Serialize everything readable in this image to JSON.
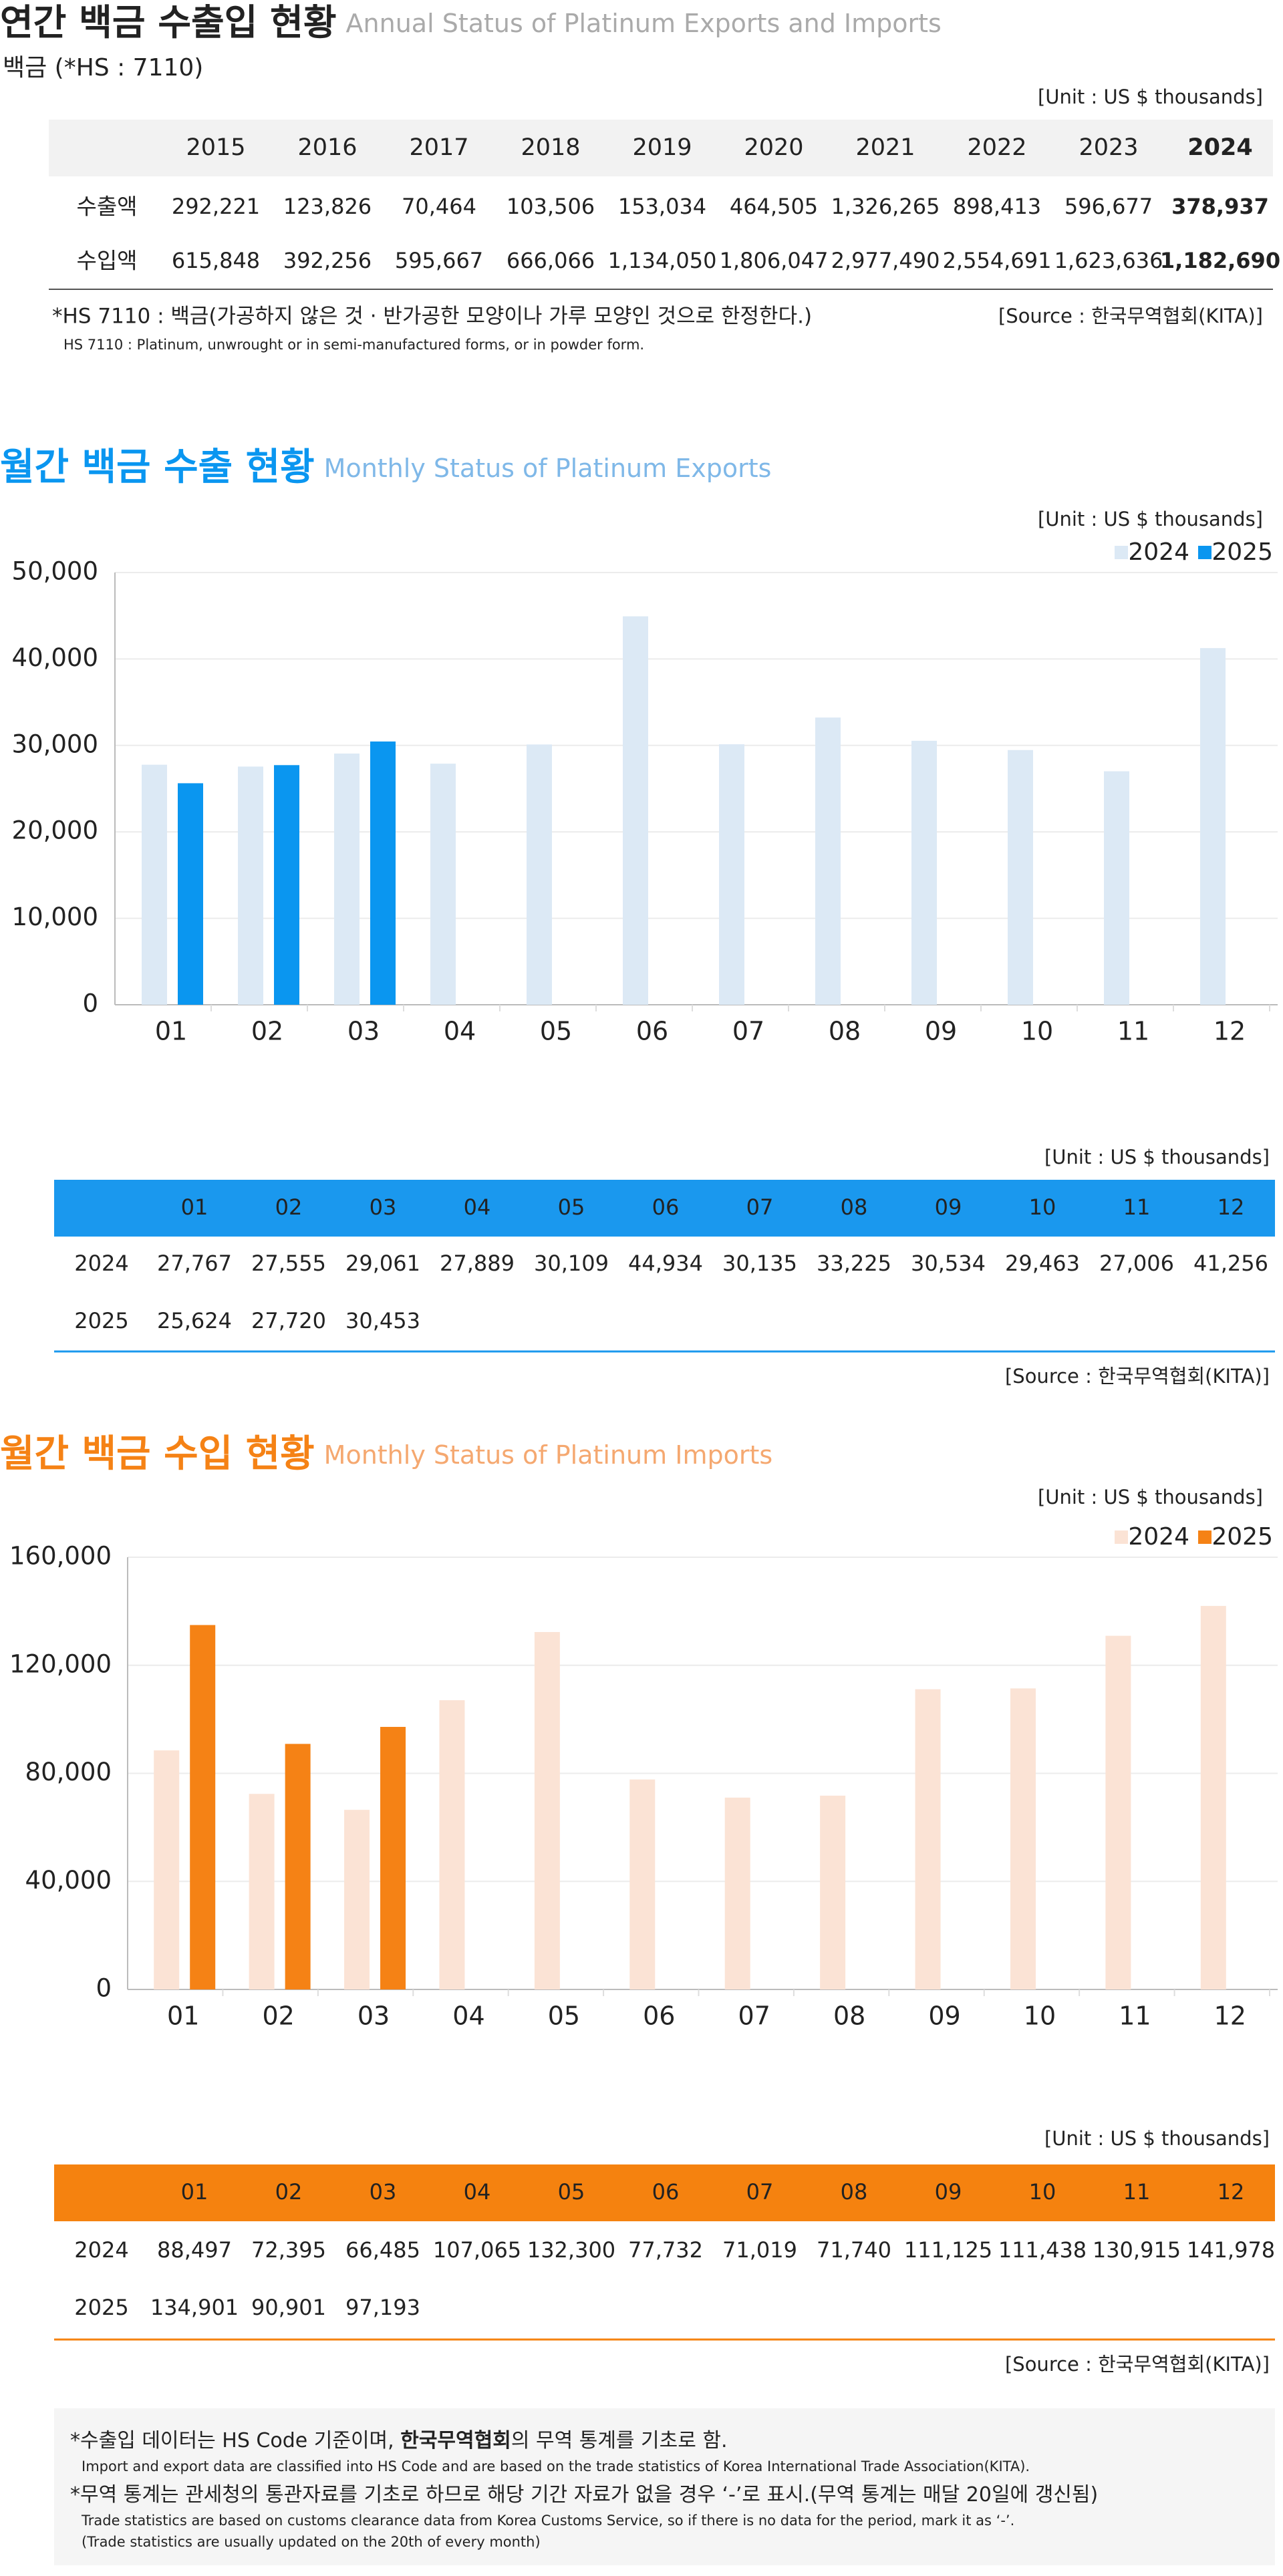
{
  "annual": {
    "title": "연간 백금 수출입 현황",
    "subtitle": "Annual Status of Platinum Exports and Imports",
    "item": "백금 (*HS : 7110)",
    "unit": "[Unit : US $ thousands]",
    "columns": [
      2015,
      2016,
      2017,
      2018,
      2019,
      2020,
      2021,
      2022,
      2023,
      2024
    ],
    "rows": [
      {
        "label": "수출액",
        "values": [
          "292,221",
          "123,826",
          "70,464",
          "103,506",
          "153,034",
          "464,505",
          "1,326,265",
          "898,413",
          "596,677",
          "378,937"
        ]
      },
      {
        "label": "수입액",
        "values": [
          "615,848",
          "392,256",
          "595,667",
          "666,066",
          "1,134,050",
          "1,806,047",
          "2,977,490",
          "2,554,691",
          "1,623,636",
          "1,182,690"
        ]
      }
    ],
    "note": "*HS 7110 : 백금(가공하지 않은 것 · 반가공한 모양이나 가루 모양인 것으로 한정한다.)",
    "note_en": "HS 7110 : Platinum, unwrought or in semi-manufactured forms, or in powder form.",
    "source": "[Source : 한국무역협회(KITA)]"
  },
  "chart_data": [
    {
      "type": "bar",
      "title": "월간 백금 수출 현황",
      "subtitle": "Monthly Status of Platinum Exports",
      "unit": "[Unit : US $ thousands]",
      "categories": [
        "01",
        "02",
        "03",
        "04",
        "05",
        "06",
        "07",
        "08",
        "09",
        "10",
        "11",
        "12"
      ],
      "series": [
        {
          "name": "2024",
          "color": "#dce9f5",
          "values": [
            27767,
            27555,
            29061,
            27889,
            30109,
            44934,
            30135,
            33225,
            30534,
            29463,
            27006,
            41256
          ],
          "value_labels": [
            "27,767",
            "27,555",
            "29,061",
            "27,889",
            "30,109",
            "44,934",
            "30,135",
            "33,225",
            "30,534",
            "29,463",
            "27,006",
            "41,256"
          ]
        },
        {
          "name": "2025",
          "color": "#0a96f0",
          "values": [
            25624,
            27720,
            30453,
            null,
            null,
            null,
            null,
            null,
            null,
            null,
            null,
            null
          ],
          "value_labels": [
            "25,624",
            "27,720",
            "30,453",
            null,
            null,
            null,
            null,
            null,
            null,
            null,
            null,
            null
          ]
        }
      ],
      "ylim": [
        0,
        50000
      ],
      "yticks": [
        0,
        {
          "value": 10000,
          "label": "10,000"
        },
        {
          "value": 20000,
          "label": "20,000"
        },
        {
          "value": 30000,
          "label": "30,000"
        },
        {
          "value": 40000,
          "label": "40,000"
        },
        {
          "value": 50000,
          "label": "50,000"
        }
      ],
      "grid": true,
      "legend": "top-right",
      "table_unit": "[Unit : US $ thousands]",
      "source": "[Source : 한국무역협회(KITA)]",
      "table_color": "#1a98ee"
    },
    {
      "type": "bar",
      "title": "월간 백금 수입 현황",
      "subtitle": "Monthly Status of Platinum Imports",
      "unit": "[Unit : US $ thousands]",
      "categories": [
        "01",
        "02",
        "03",
        "04",
        "05",
        "06",
        "07",
        "08",
        "09",
        "10",
        "11",
        "12"
      ],
      "series": [
        {
          "name": "2024",
          "color": "#fbe3d5",
          "values": [
            88497,
            72395,
            66485,
            107065,
            132300,
            77732,
            71019,
            71740,
            111125,
            111438,
            130915,
            141978
          ],
          "value_labels": [
            "88,497",
            "72,395",
            "66,485",
            "107,065",
            "132,300",
            "77,732",
            "71,019",
            "71,740",
            "111,125",
            "111,438",
            "130,915",
            "141,978"
          ]
        },
        {
          "name": "2025",
          "color": "#f58215",
          "values": [
            134901,
            90901,
            97193,
            null,
            null,
            null,
            null,
            null,
            null,
            null,
            null,
            null
          ],
          "value_labels": [
            "134,901",
            "90,901",
            "97,193",
            null,
            null,
            null,
            null,
            null,
            null,
            null,
            null,
            null
          ]
        }
      ],
      "ylim": [
        0,
        160000
      ],
      "yticks": [
        0,
        {
          "value": 40000,
          "label": "40,000"
        },
        {
          "value": 80000,
          "label": "80,000"
        },
        {
          "value": 120000,
          "label": "120,000"
        },
        {
          "value": 160000,
          "label": "160,000"
        }
      ],
      "grid": true,
      "legend": "top-right",
      "table_unit": "[Unit : US $ thousands]",
      "source": "[Source : 한국무역협회(KITA)]",
      "table_color": "#f5820f"
    }
  ],
  "footer": {
    "lines": [
      {
        "parts": [
          "*수출입 데이터는 HS Code 기준이며, ",
          "한국무역협회",
          "의 무역 통계를 기초로 함."
        ],
        "en": [
          "Import and export data are classified into HS Code and are based on the trade statistics of Korea International  Trade Association(KITA)."
        ]
      },
      {
        "parts": [
          "*무역 통계는 관세청의  통관자료를 기초로 하므로 해당 기간 자료가 없을 경우 ‘-’로 표시.(무역 통계는 매달 20일에 갱신됨)"
        ],
        "en": [
          "Trade statistics are based on customs clearance data from Korea Customs Service, so if there is no data for the period, mark it as ‘-’.",
          "(Trade statistics are usually updated on the 20th of every month)"
        ]
      }
    ]
  }
}
